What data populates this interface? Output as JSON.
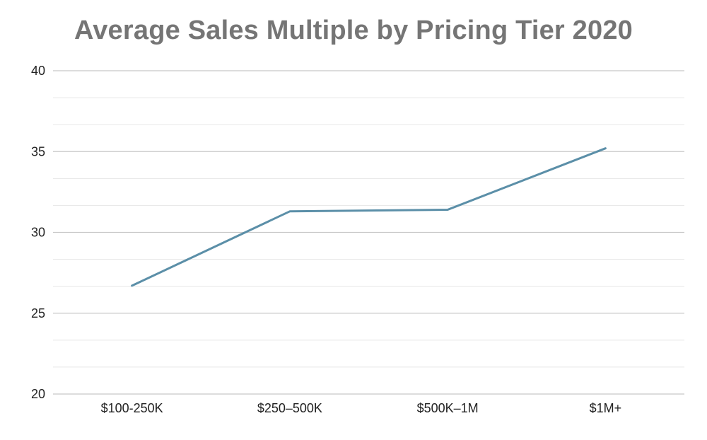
{
  "chart_data": {
    "type": "line",
    "title": "Average Sales Multiple by Pricing Tier 2020",
    "xlabel": "",
    "ylabel": "",
    "categories": [
      "$100-250K",
      "$250–500K",
      "$500K–1M",
      "$1M+"
    ],
    "series": [
      {
        "values": [
          26.7,
          31.3,
          31.4,
          35.2
        ]
      }
    ],
    "ylim": [
      20,
      40
    ],
    "yticks": [
      20,
      25,
      30,
      35,
      40
    ],
    "grid": true,
    "legend": "none",
    "line_color": "#5b8fa8",
    "major_grid_color": "#c8c8c8",
    "minor_grid_color": "#e6e6e6",
    "title_color": "#757575"
  }
}
